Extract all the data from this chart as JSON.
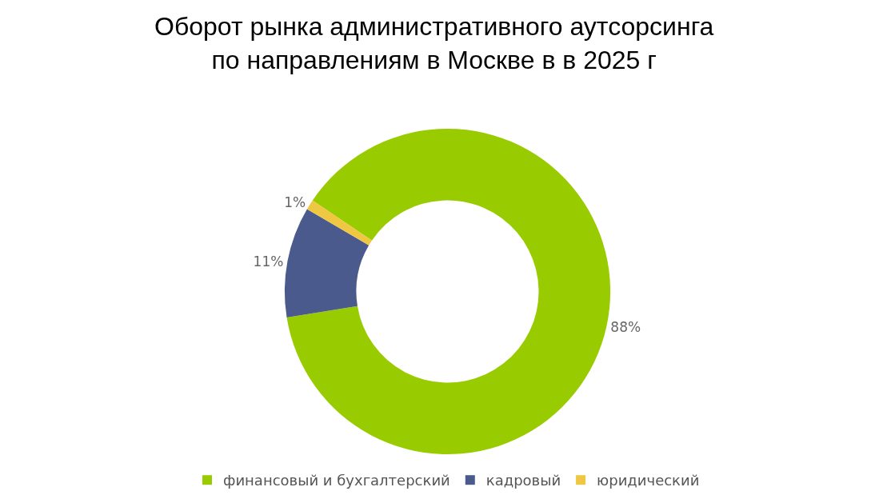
{
  "chart_data": {
    "type": "donut",
    "title": "Оборот рынка административного аутсорсинга\nпо направлениям в Москве в в 2025 г",
    "categories": [
      "финансовый и бухгалтерский",
      "кадровый",
      "юридический"
    ],
    "values": [
      88,
      11,
      1
    ],
    "colors": [
      "#99cc00",
      "#4a5a8c",
      "#f0c742"
    ],
    "value_labels": [
      "88%",
      "11%",
      "1%"
    ],
    "legend": "bottom"
  }
}
